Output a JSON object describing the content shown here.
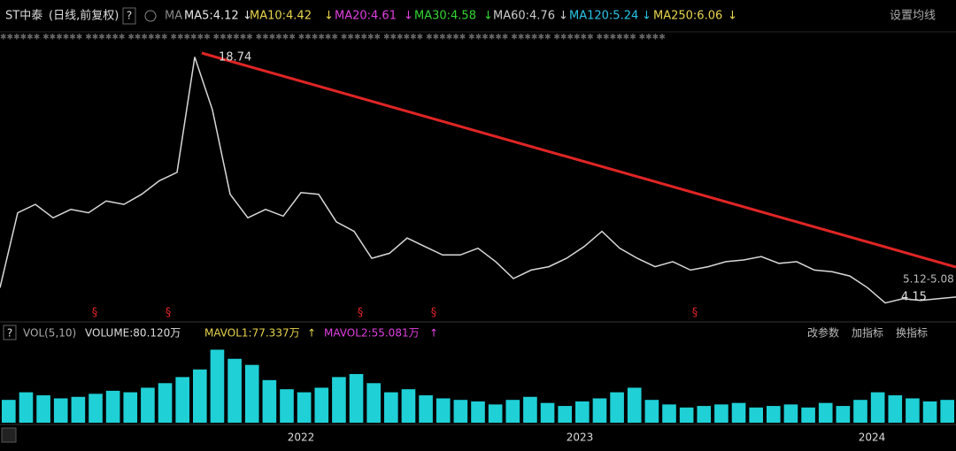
{
  "header": {
    "title": "ST中泰",
    "subtitle": "(日线,前复权)",
    "help": "?",
    "ma_label": "MA",
    "ma": [
      {
        "label": "MA5:4.12",
        "arrow": "↓",
        "color": "#e6e6e6"
      },
      {
        "label": "MA10:4.42",
        "arrow": "↓",
        "color": "#e8d44d"
      },
      {
        "label": "MA20:4.61",
        "arrow": "↓",
        "color": "#e040e0"
      },
      {
        "label": "MA30:4.58",
        "arrow": "↓",
        "color": "#35d435"
      },
      {
        "label": "MA60:4.76",
        "arrow": "↓",
        "color": "#cccccc"
      },
      {
        "label": "MA120:5.24",
        "arrow": "↓",
        "color": "#29c5e6"
      },
      {
        "label": "MA250:6.06",
        "arrow": "↓",
        "color": "#e8d44d"
      }
    ],
    "settings": "设置均线"
  },
  "chart_data": {
    "type": "line",
    "color": "#d8d8d8",
    "ylim": [
      3.5,
      19.5
    ],
    "values": [
      5.06,
      9.5,
      10.0,
      9.2,
      9.7,
      9.5,
      10.2,
      10.0,
      10.6,
      11.4,
      11.9,
      18.74,
      15.6,
      10.6,
      9.2,
      9.7,
      9.3,
      10.7,
      10.6,
      8.96,
      8.4,
      6.8,
      7.1,
      8.0,
      7.5,
      7.0,
      7.0,
      7.4,
      6.6,
      5.6,
      6.1,
      6.3,
      6.8,
      7.5,
      8.4,
      7.4,
      6.8,
      6.3,
      6.6,
      6.1,
      6.3,
      6.6,
      6.7,
      6.9,
      6.5,
      6.6,
      6.1,
      6.0,
      5.75,
      5.06,
      4.15,
      4.4,
      4.3,
      4.4,
      4.5
    ],
    "annotations": [
      "18.74",
      "5.12-5.08",
      "4.15"
    ],
    "markers": [
      "§",
      "§",
      "§",
      "§",
      "§"
    ],
    "x_labels": [
      "2022",
      "2023",
      "2024"
    ]
  },
  "volume": {
    "type": "bar",
    "color": "#1fd0d6",
    "ylim": [
      0,
      500
    ],
    "header": {
      "help": "?",
      "name": "VOL(5,10)",
      "volume": "VOLUME:80.120万",
      "mavol1": "MAVOL1:77.337万",
      "mavol1_arrow": "↑",
      "mavol2": "MAVOL2:55.081万",
      "mavol2_arrow": "↑"
    },
    "buttons": [
      "改参数",
      "加指标",
      "换指标"
    ],
    "values": [
      150,
      200,
      180,
      160,
      170,
      190,
      210,
      200,
      230,
      260,
      300,
      350,
      480,
      420,
      380,
      280,
      220,
      200,
      230,
      300,
      320,
      260,
      200,
      220,
      180,
      160,
      150,
      140,
      120,
      150,
      170,
      130,
      110,
      140,
      160,
      200,
      230,
      150,
      120,
      100,
      110,
      120,
      130,
      100,
      110,
      120,
      100,
      130,
      110,
      150,
      200,
      180,
      160,
      140,
      150
    ]
  }
}
